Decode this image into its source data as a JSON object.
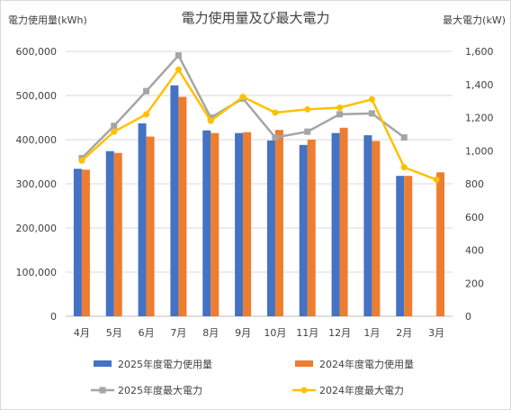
{
  "chart_data": {
    "type": "bar",
    "title": "電力使用量及び最大電力",
    "ylabel_left": "電力使用量(kWh)",
    "ylabel_right": "最大電力(kW)",
    "categories": [
      "4月",
      "5月",
      "6月",
      "7月",
      "8月",
      "9月",
      "10月",
      "11月",
      "12月",
      "1月",
      "2月",
      "3月"
    ],
    "y_left": {
      "range": [
        0,
        600000
      ],
      "ticks": [
        "0",
        "100,000",
        "200,000",
        "300,000",
        "400,000",
        "500,000",
        "600,000"
      ]
    },
    "y_right": {
      "range": [
        0,
        1600
      ],
      "ticks": [
        "0",
        "200",
        "400",
        "600",
        "800",
        "1,000",
        "1,200",
        "1,400",
        "1,600"
      ]
    },
    "grid": true,
    "legend_position": "bottom",
    "series": [
      {
        "name": "2025年度電力使用量",
        "type": "bar",
        "axis": "left",
        "color": "#4472c4",
        "values": [
          334000,
          374000,
          437000,
          523000,
          421000,
          415000,
          398000,
          388000,
          415000,
          410000,
          318000,
          null
        ]
      },
      {
        "name": "2024年度電力使用量",
        "type": "bar",
        "axis": "left",
        "color": "#ed7d31",
        "values": [
          332000,
          370000,
          407000,
          497000,
          415000,
          417000,
          422000,
          400000,
          427000,
          397000,
          318000,
          326000
        ]
      },
      {
        "name": "2025年度最大電力",
        "type": "line",
        "axis": "right",
        "color": "#a5a5a5",
        "values": [
          955,
          1150,
          1360,
          1575,
          1200,
          1315,
          1080,
          1115,
          1220,
          1225,
          1080,
          null
        ]
      },
      {
        "name": "2024年度最大電力",
        "type": "line",
        "axis": "right",
        "color": "#ffc000",
        "values": [
          940,
          1115,
          1220,
          1490,
          1180,
          1325,
          1230,
          1250,
          1260,
          1310,
          900,
          825
        ]
      }
    ]
  }
}
